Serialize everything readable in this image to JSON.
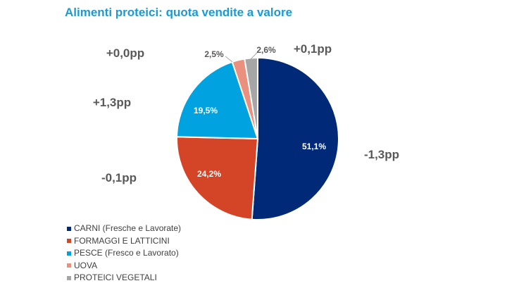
{
  "title": "Alimenti proteici: quota vendite a valore",
  "chart_data": {
    "type": "pie",
    "title": "Alimenti proteici: quota vendite a valore",
    "slices": [
      {
        "name": "CARNI (Fresche e Lavorate)",
        "value": 51.1,
        "label": "51,1%",
        "change": "-1,3pp",
        "color": "#002a78"
      },
      {
        "name": "FORMAGGI E LATTICINI",
        "value": 24.2,
        "label": "24,2%",
        "change": "-0,1pp",
        "color": "#d44527"
      },
      {
        "name": "PESCE (Fresco e Lavorato)",
        "value": 19.5,
        "label": "19,5%",
        "change": "+1,3pp",
        "color": "#00a3e0"
      },
      {
        "name": "UOVA",
        "value": 2.5,
        "label": "2,5%",
        "change": "+0,0pp",
        "color": "#e9907e"
      },
      {
        "name": "PROTEICI VEGETALI",
        "value": 2.6,
        "label": "2,6%",
        "change": "+0,1pp",
        "color": "#a6a6a6"
      }
    ],
    "legend_position": "bottom-left"
  }
}
